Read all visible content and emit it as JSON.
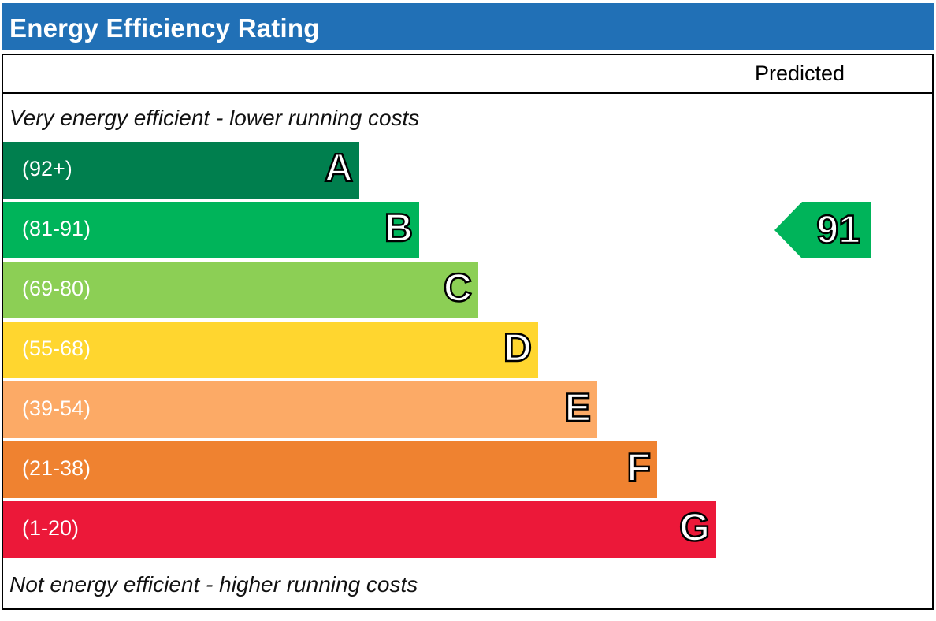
{
  "title": "Energy Efficiency Rating",
  "column_header": "Predicted",
  "top_note": "Very energy efficient - lower running costs",
  "bottom_note": "Not energy efficient - higher running costs",
  "chart_data": {
    "type": "bar",
    "title": "Energy Efficiency Rating",
    "categories": [
      "A",
      "B",
      "C",
      "D",
      "E",
      "F",
      "G"
    ],
    "ranges": [
      "(92+)",
      "(81-91)",
      "(69-80)",
      "(55-68)",
      "(39-54)",
      "(21-38)",
      "(1-20)"
    ],
    "colors": [
      "#007f4e",
      "#00b45a",
      "#8ccf55",
      "#ffd62f",
      "#fcaa66",
      "#ef8230",
      "#ec1839"
    ],
    "predicted": {
      "value": 91,
      "band": "B",
      "color": "#00b45a"
    }
  }
}
